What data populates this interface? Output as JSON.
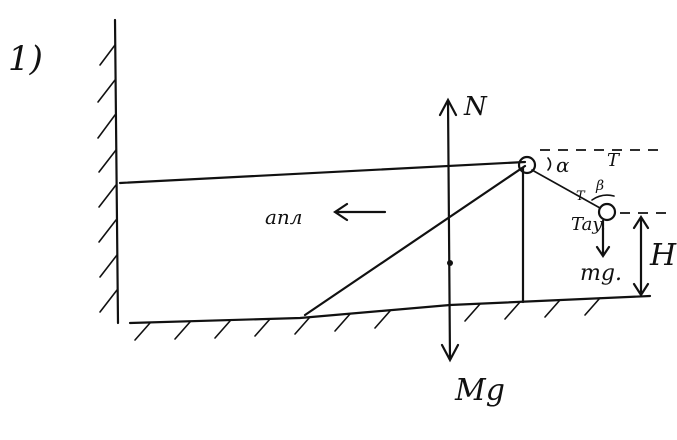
{
  "labels": [
    "1)",
    "N",
    "α",
    "T",
    "β",
    "T",
    "Tay.",
    "aпл",
    "mg.",
    "H",
    "Mg"
  ]
}
